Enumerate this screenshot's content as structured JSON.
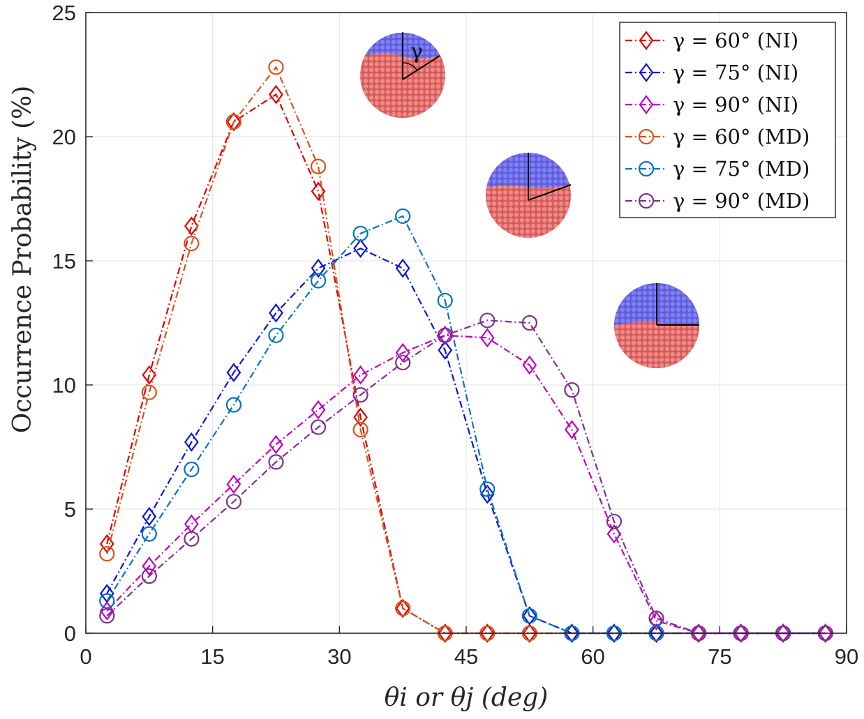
{
  "chart_data": {
    "type": "line",
    "title": "",
    "xlabel": "θi or θj (deg)",
    "ylabel": "Occurrence Probability (%)",
    "xlim": [
      0,
      90
    ],
    "ylim": [
      0,
      25
    ],
    "xticks": [
      "0",
      "15",
      "30",
      "45",
      "60",
      "75",
      "90"
    ],
    "yticks": [
      "0",
      "5",
      "10",
      "15",
      "20",
      "25"
    ],
    "grid": true,
    "legend_position": "top-right",
    "x": [
      2.5,
      7.5,
      12.5,
      17.5,
      22.5,
      27.5,
      32.5,
      37.5,
      42.5,
      47.5,
      52.5,
      57.5,
      62.5,
      67.5,
      72.5,
      77.5,
      82.5,
      87.5
    ],
    "series": [
      {
        "name": "γ = 60° (NI)",
        "color": "#e00000",
        "marker": "diamond",
        "line": "dashdot",
        "values": [
          3.6,
          10.4,
          16.4,
          20.6,
          21.7,
          17.8,
          8.7,
          1.0,
          0,
          0,
          0,
          0,
          0,
          0,
          0,
          0,
          0,
          0
        ]
      },
      {
        "name": "γ = 75° (NI)",
        "color": "#0a14d8",
        "marker": "diamond",
        "line": "dashdot",
        "values": [
          1.6,
          4.7,
          7.7,
          10.5,
          12.9,
          14.7,
          15.5,
          14.7,
          11.4,
          5.6,
          0.7,
          0,
          0,
          0,
          0,
          0,
          0,
          0
        ]
      },
      {
        "name": "γ = 90° (NI)",
        "color": "#c000c0",
        "marker": "diamond",
        "line": "dashdot",
        "values": [
          0.9,
          2.7,
          4.4,
          6.0,
          7.6,
          9.0,
          10.4,
          11.3,
          12.0,
          11.9,
          10.8,
          8.2,
          4.0,
          0.5,
          0,
          0,
          0,
          0
        ]
      },
      {
        "name": "γ = 60° (MD)",
        "color": "#d95319",
        "marker": "circle",
        "line": "dashdot",
        "values": [
          3.2,
          9.7,
          15.7,
          20.6,
          22.8,
          18.8,
          8.2,
          1.0,
          0,
          0,
          0,
          0,
          0,
          0,
          0,
          0,
          0,
          0
        ]
      },
      {
        "name": "γ = 75° (MD)",
        "color": "#0072bd",
        "marker": "circle",
        "line": "dashdot",
        "values": [
          1.3,
          4.0,
          6.6,
          9.2,
          12.0,
          14.2,
          16.1,
          16.8,
          13.4,
          5.8,
          0.7,
          0,
          0,
          0,
          0,
          0,
          0,
          0
        ]
      },
      {
        "name": "γ = 90° (MD)",
        "color": "#7e2f8e",
        "marker": "circle",
        "line": "dashdot",
        "values": [
          0.7,
          2.3,
          3.8,
          5.3,
          6.9,
          8.3,
          9.6,
          10.9,
          12.0,
          12.6,
          12.5,
          9.8,
          4.5,
          0.6,
          0,
          0,
          0,
          0
        ]
      }
    ],
    "annotations": [
      {
        "label": "γ",
        "caption": "sphere γ = 60°"
      },
      {
        "caption": "sphere γ = 75°"
      },
      {
        "caption": "sphere γ = 90°"
      }
    ]
  },
  "colors": {
    "sphere_top": "#6a6ae6",
    "sphere_bottom": "#e06a68",
    "axis": "#262626",
    "grid": "#e2e2e2"
  }
}
